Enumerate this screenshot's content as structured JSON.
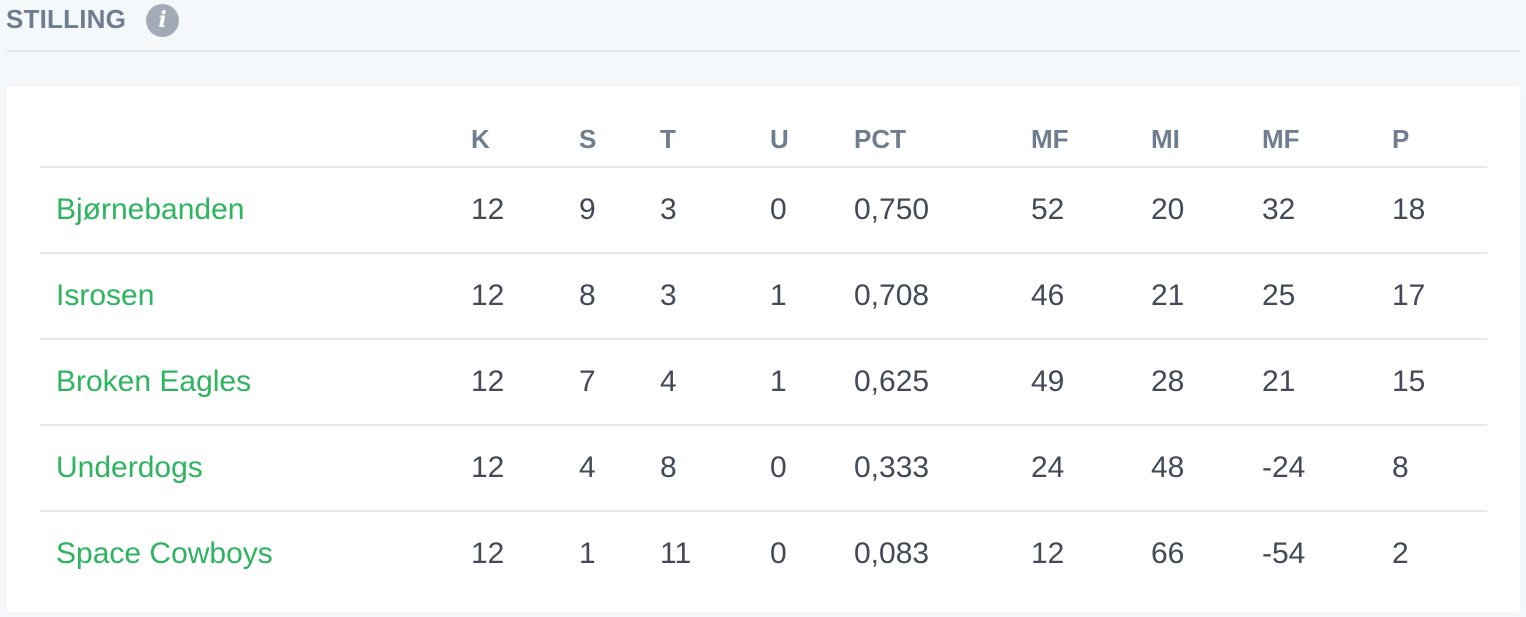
{
  "header": {
    "title": "STILLING",
    "info_icon": "info-icon"
  },
  "colors": {
    "team_link": "#2db45f",
    "header_text": "#6f7d90",
    "body_text": "#414a56",
    "page_bg": "#f5f8fb"
  },
  "table": {
    "columns": [
      "",
      "K",
      "S",
      "T",
      "U",
      "PCT",
      "MF",
      "MI",
      "MF",
      "P"
    ],
    "rows": [
      {
        "team": "Bjørnebanden",
        "k": "12",
        "s": "9",
        "t": "3",
        "u": "0",
        "pct": "0,750",
        "mf": "52",
        "mi": "20",
        "diff": "32",
        "p": "18"
      },
      {
        "team": "Isrosen",
        "k": "12",
        "s": "8",
        "t": "3",
        "u": "1",
        "pct": "0,708",
        "mf": "46",
        "mi": "21",
        "diff": "25",
        "p": "17"
      },
      {
        "team": "Broken Eagles",
        "k": "12",
        "s": "7",
        "t": "4",
        "u": "1",
        "pct": "0,625",
        "mf": "49",
        "mi": "28",
        "diff": "21",
        "p": "15"
      },
      {
        "team": "Underdogs",
        "k": "12",
        "s": "4",
        "t": "8",
        "u": "0",
        "pct": "0,333",
        "mf": "24",
        "mi": "48",
        "diff": "-24",
        "p": "8"
      },
      {
        "team": "Space Cowboys",
        "k": "12",
        "s": "1",
        "t": "11",
        "u": "0",
        "pct": "0,083",
        "mf": "12",
        "mi": "66",
        "diff": "-54",
        "p": "2"
      }
    ]
  }
}
